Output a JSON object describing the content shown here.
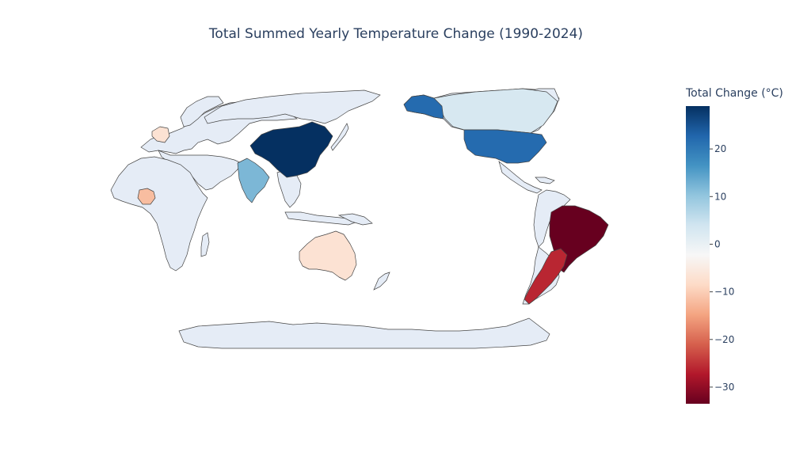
{
  "title": "Total Summed Yearly Temperature Change (1990-2024)",
  "colorbar": {
    "title": "Total Change (°C)",
    "range": [
      -33.5,
      29
    ],
    "ticks": [
      20,
      10,
      0,
      -10,
      -20,
      -30
    ],
    "tick_labels": [
      "20",
      "10",
      "0",
      "−10",
      "−20",
      "−30"
    ],
    "colorscale": [
      "#67001f",
      "#b2182b",
      "#d6604d",
      "#f4a582",
      "#fddbc7",
      "#f7f7f7",
      "#d1e5f0",
      "#92c5de",
      "#4393c3",
      "#2166ac",
      "#053061"
    ]
  },
  "map": {
    "projection": "robinson",
    "center_longitude": 150,
    "land_color": "#e5ecf6",
    "border_color": "#444444"
  },
  "chart_data": {
    "type": "choropleth",
    "title": "Total Summed Yearly Temperature Change (1990-2024)",
    "colorbar_title": "Total Change (°C)",
    "countries": [
      {
        "name": "China",
        "value": 29
      },
      {
        "name": "United States",
        "value": 22
      },
      {
        "name": "India",
        "value": 12
      },
      {
        "name": "Canada",
        "value": 3
      },
      {
        "name": "Russia",
        "value": 0.5
      },
      {
        "name": "Australia",
        "value": -7
      },
      {
        "name": "Nigeria",
        "value": -12
      },
      {
        "name": "France",
        "value": -7
      },
      {
        "name": "Argentina",
        "value": -26
      },
      {
        "name": "Brazil",
        "value": -33.5
      }
    ]
  }
}
